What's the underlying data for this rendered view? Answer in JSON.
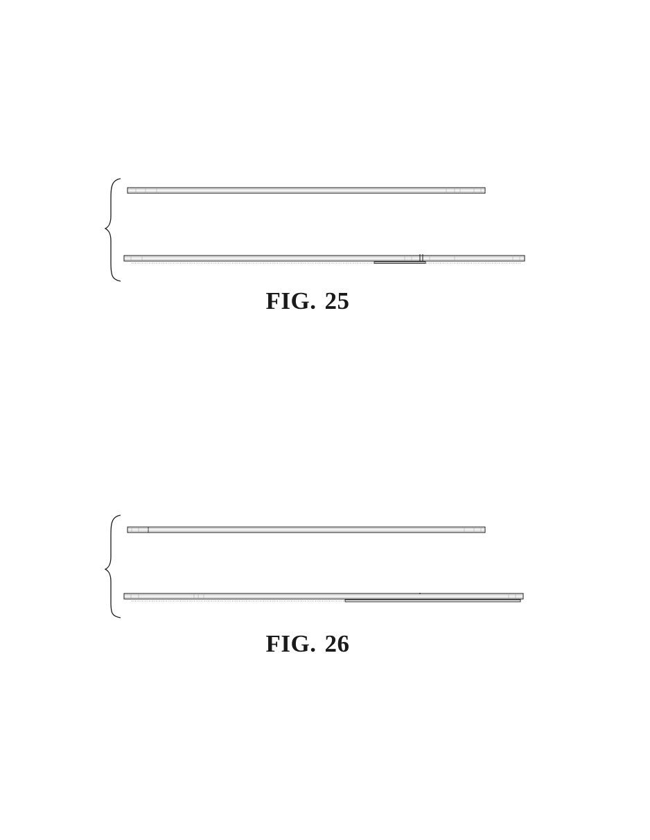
{
  "figures": [
    {
      "id": "fig-25",
      "label_word": "FIG.",
      "label_number": "25"
    },
    {
      "id": "fig-26",
      "label_word": "FIG.",
      "label_number": "26"
    }
  ],
  "colors": {
    "ink": "#1a1a1a",
    "hatch": "#777777",
    "background": "#ffffff"
  }
}
